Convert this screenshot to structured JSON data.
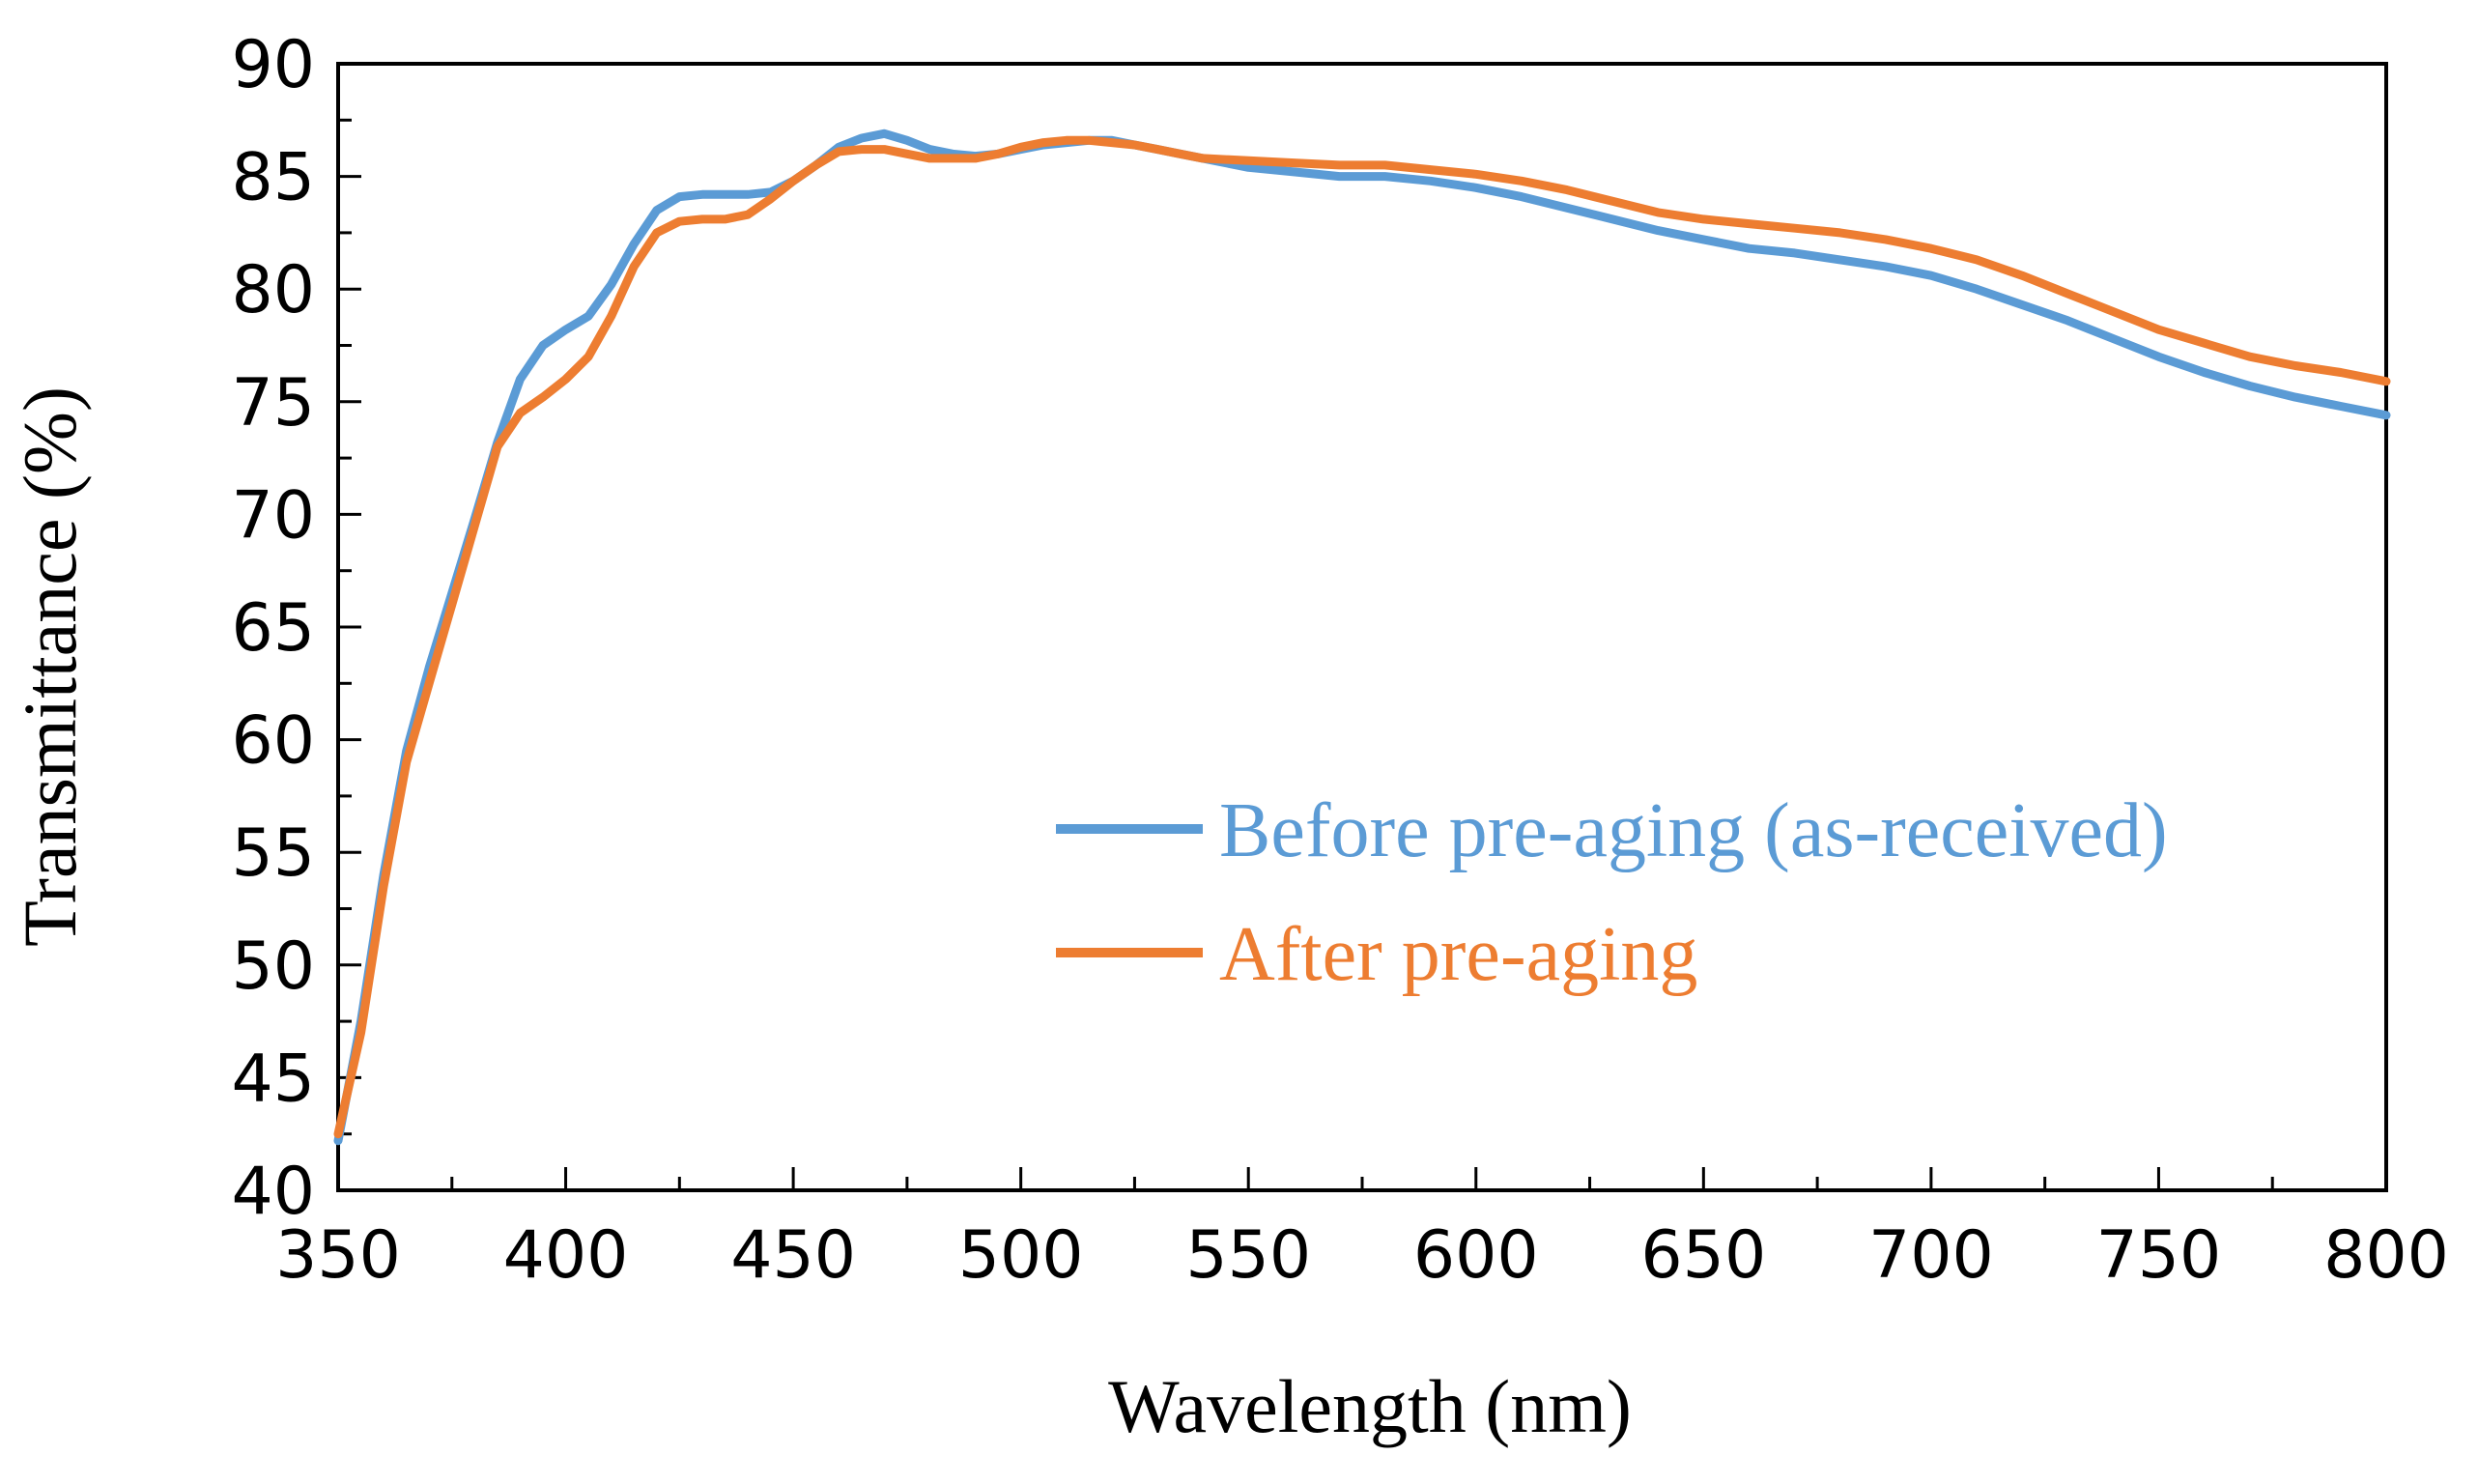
{
  "chart_data": {
    "type": "line",
    "title": "",
    "xlabel": "Wavelength (nm)",
    "ylabel": "Transmittance (%)",
    "xlim": [
      350,
      800
    ],
    "ylim": [
      40,
      90
    ],
    "xticks": [
      350,
      400,
      450,
      500,
      550,
      600,
      650,
      700,
      750,
      800
    ],
    "yticks": [
      40,
      45,
      50,
      55,
      60,
      65,
      70,
      75,
      80,
      85,
      90
    ],
    "grid": false,
    "legend_position": "center-right",
    "series": [
      {
        "name": "Before pre-aging (as-received)",
        "color": "#5B9BD5",
        "x": [
          350,
          355,
          360,
          365,
          370,
          375,
          380,
          385,
          390,
          395,
          400,
          405,
          410,
          415,
          420,
          425,
          430,
          435,
          440,
          445,
          450,
          455,
          460,
          465,
          470,
          475,
          480,
          485,
          490,
          495,
          500,
          505,
          510,
          515,
          520,
          525,
          530,
          535,
          540,
          550,
          560,
          570,
          580,
          590,
          600,
          610,
          620,
          630,
          640,
          650,
          660,
          670,
          680,
          690,
          700,
          710,
          720,
          730,
          740,
          750,
          760,
          770,
          780,
          790,
          800
        ],
        "y": [
          42.2,
          47.5,
          54.0,
          59.5,
          63.2,
          66.5,
          69.8,
          73.2,
          76.0,
          77.5,
          78.2,
          78.8,
          80.2,
          82.0,
          83.5,
          84.1,
          84.2,
          84.2,
          84.2,
          84.3,
          84.8,
          85.5,
          86.3,
          86.7,
          86.9,
          86.6,
          86.2,
          86.0,
          85.9,
          86.0,
          86.2,
          86.4,
          86.5,
          86.6,
          86.6,
          86.4,
          86.2,
          86.0,
          85.8,
          85.4,
          85.2,
          85.0,
          85.0,
          84.8,
          84.5,
          84.1,
          83.6,
          83.1,
          82.6,
          82.2,
          81.8,
          81.6,
          81.3,
          81.0,
          80.6,
          80.0,
          79.3,
          78.6,
          77.8,
          77.0,
          76.3,
          75.7,
          75.2,
          74.8,
          74.4
        ]
      },
      {
        "name": "After pre-aging",
        "color": "#ED7D31",
        "x": [
          350,
          355,
          360,
          365,
          370,
          375,
          380,
          385,
          390,
          395,
          400,
          405,
          410,
          415,
          420,
          425,
          430,
          435,
          440,
          445,
          450,
          455,
          460,
          465,
          470,
          475,
          480,
          485,
          490,
          495,
          500,
          505,
          510,
          515,
          520,
          525,
          530,
          535,
          540,
          550,
          560,
          570,
          580,
          590,
          600,
          610,
          620,
          630,
          640,
          650,
          660,
          670,
          680,
          690,
          700,
          710,
          720,
          730,
          740,
          750,
          760,
          770,
          780,
          790,
          800
        ],
        "y": [
          42.5,
          47.0,
          53.5,
          59.0,
          62.5,
          66.0,
          69.5,
          73.0,
          74.5,
          75.2,
          76.0,
          77.0,
          78.8,
          81.0,
          82.5,
          83.0,
          83.1,
          83.1,
          83.3,
          84.0,
          84.8,
          85.5,
          86.1,
          86.2,
          86.2,
          86.0,
          85.8,
          85.8,
          85.8,
          86.0,
          86.3,
          86.5,
          86.6,
          86.6,
          86.5,
          86.4,
          86.2,
          86.0,
          85.8,
          85.7,
          85.6,
          85.5,
          85.5,
          85.3,
          85.1,
          84.8,
          84.4,
          83.9,
          83.4,
          83.1,
          82.9,
          82.7,
          82.5,
          82.2,
          81.8,
          81.3,
          80.6,
          79.8,
          79.0,
          78.2,
          77.6,
          77.0,
          76.6,
          76.3,
          75.9
        ]
      }
    ]
  }
}
